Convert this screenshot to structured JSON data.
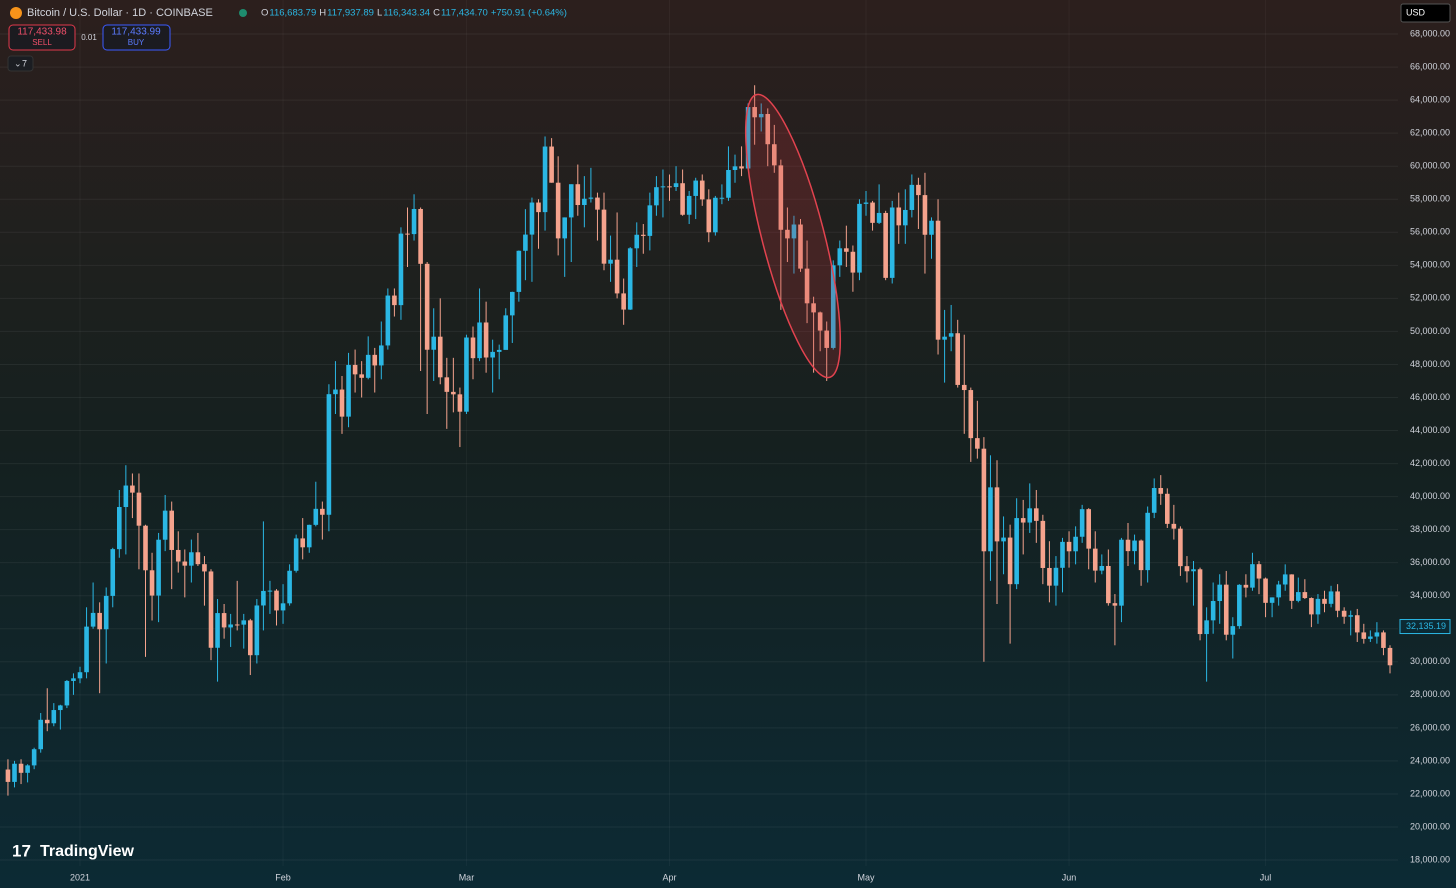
{
  "header": {
    "symbol": "Bitcoin / U.S. Dollar · 1D · COINBASE",
    "ohlc": [
      {
        "key": "O",
        "text": "116,683.79"
      },
      {
        "key": "H",
        "text": "117,937.89"
      },
      {
        "key": "L",
        "text": "116,343.34"
      },
      {
        "key": "C",
        "text": "117,434.70"
      }
    ],
    "change": "+750.91 (+0.64%)",
    "sell_price": "117,433.98",
    "sell": "SELL",
    "spread": "0.01",
    "buy_price": "117,433.99",
    "buy": "BUY",
    "indicators": "7",
    "currency": "USD",
    "logo": "TradingView"
  },
  "chart_data": {
    "type": "candlestick",
    "up_color": "#2bb7e4",
    "down_color": "#f5a38d",
    "grid": true,
    "categories": [
      null,
      null,
      null,
      null,
      null,
      null,
      null,
      null,
      null,
      null,
      null,
      "2021",
      null,
      null,
      null,
      null,
      null,
      null,
      null,
      null,
      null,
      null,
      null,
      null,
      null,
      null,
      null,
      null,
      null,
      null,
      null,
      null,
      null,
      null,
      null,
      null,
      null,
      null,
      null,
      null,
      null,
      null,
      "Feb",
      null,
      null,
      null,
      null,
      null,
      null,
      null,
      null,
      null,
      null,
      null,
      null,
      null,
      null,
      null,
      null,
      null,
      null,
      null,
      null,
      null,
      null,
      null,
      null,
      null,
      null,
      null,
      "Mar",
      null,
      null,
      null,
      null,
      null,
      null,
      null,
      null,
      null,
      null,
      null,
      null,
      null,
      null,
      null,
      null,
      null,
      null,
      null,
      null,
      null,
      null,
      null,
      null,
      null,
      null,
      null,
      null,
      null,
      null,
      "Apr",
      null,
      null,
      null,
      null,
      null,
      null,
      null,
      null,
      null,
      null,
      null,
      null,
      null,
      null,
      null,
      null,
      null,
      null,
      null,
      null,
      null,
      null,
      null,
      null,
      null,
      null,
      null,
      null,
      null,
      "May",
      null,
      null,
      null,
      null,
      null,
      null,
      null,
      null,
      null,
      null,
      null,
      null,
      null,
      null,
      null,
      null,
      null,
      null,
      null,
      null,
      null,
      null,
      null,
      null,
      null,
      null,
      null,
      null,
      null,
      null,
      "Jun",
      null,
      null,
      null,
      null,
      null,
      null,
      null,
      null,
      null,
      null,
      null,
      null,
      null,
      null,
      null,
      null,
      null,
      null,
      null,
      null,
      null,
      null,
      null,
      null,
      null,
      null,
      null,
      null,
      null,
      "Jul",
      null,
      null,
      null,
      null,
      null,
      null,
      null,
      null,
      null,
      null,
      null,
      null,
      null,
      null,
      null,
      null,
      null,
      null,
      null
    ],
    "open": [
      23480,
      22730,
      23830,
      23280,
      23730,
      24710,
      26490,
      26280,
      27080,
      27360,
      28840,
      29000,
      29370,
      32130,
      32960,
      31970,
      33990,
      36820,
      39370,
      40670,
      40240,
      38240,
      35540,
      34010,
      37390,
      39150,
      36770,
      36070,
      35820,
      36630,
      35910,
      35470,
      30850,
      32950,
      32080,
      32260,
      32250,
      32510,
      30400,
      33410,
      34290,
      34310,
      33110,
      33540,
      35510,
      37470,
      36930,
      38290,
      39260,
      38900,
      46200,
      46480,
      44840,
      47970,
      47400,
      47190,
      48580,
      47940,
      49150,
      52170,
      51590,
      55920,
      55890,
      57410,
      54090,
      48890,
      49680,
      47220,
      46340,
      46190,
      45140,
      49630,
      48380,
      50540,
      48420,
      48760,
      48880,
      50970,
      52390,
      54880,
      55860,
      57800,
      57220,
      61190,
      59000,
      55630,
      56900,
      58910,
      57650,
      58030,
      58100,
      57370,
      54100,
      54340,
      52300,
      51320,
      55030,
      55850,
      55780,
      57630,
      58730,
      58780,
      58740,
      58970,
      57060,
      58200,
      59130,
      57990,
      56000,
      58090,
      58090,
      59770,
      59990,
      59860,
      63580,
      62960,
      63160,
      61330,
      60050,
      56150,
      55630,
      56470,
      53800,
      51700,
      51150,
      50050,
      49000,
      54000,
      55030,
      54820,
      53560,
      57720,
      57800,
      56570,
      57170,
      53240,
      57500,
      56420,
      57350,
      58870,
      58250,
      55850,
      56700,
      49500,
      49680,
      49890,
      46760,
      46450,
      43540,
      42900,
      36690,
      40560,
      37290,
      37520,
      34700,
      38700,
      38430,
      39290,
      38530,
      35680,
      34610,
      35690,
      37260,
      36690,
      37570,
      39240,
      36850,
      35520,
      35800,
      33550,
      33400,
      37390,
      36700,
      37340,
      35550,
      39020,
      40520,
      40170,
      38350,
      38060,
      35790,
      35480,
      35600,
      31680,
      32510,
      33680,
      34670,
      31640,
      32160,
      34660,
      34490,
      35910,
      35040,
      33570,
      33900,
      34680,
      35290,
      33690,
      34220,
      33860,
      32870,
      33810,
      33510,
      34260,
      33090,
      32730,
      32820,
      31780,
      31390,
      31530,
      31780,
      30840
    ],
    "high": [
      24100,
      24000,
      24100,
      23800,
      24800,
      26900,
      28400,
      27500,
      27400,
      28900,
      29300,
      29700,
      33300,
      34800,
      33600,
      34500,
      36900,
      40400,
      41900,
      41400,
      41400,
      38300,
      36600,
      37800,
      40100,
      39700,
      37900,
      36800,
      37400,
      37800,
      36400,
      35600,
      33800,
      33500,
      32900,
      34900,
      32900,
      32600,
      33800,
      38500,
      34900,
      34400,
      34700,
      35900,
      37700,
      38700,
      38300,
      40900,
      39700,
      46800,
      48200,
      47300,
      48700,
      48900,
      48200,
      49700,
      49000,
      50600,
      52600,
      52600,
      56300,
      57500,
      58300,
      57500,
      54200,
      51400,
      52000,
      48400,
      48400,
      46600,
      49800,
      50300,
      52600,
      51800,
      49500,
      49200,
      51400,
      52400,
      54900,
      57400,
      58100,
      58000,
      61800,
      61700,
      60600,
      56900,
      58900,
      60100,
      59400,
      59900,
      58400,
      58400,
      55800,
      57200,
      53200,
      55100,
      56600,
      56500,
      58400,
      59400,
      59800,
      59500,
      60000,
      59800,
      58500,
      59300,
      59500,
      58600,
      58200,
      58900,
      61200,
      60700,
      61200,
      63800,
      64900,
      63800,
      63500,
      62500,
      60400,
      57500,
      57000,
      56800,
      55500,
      52100,
      51200,
      50600,
      54300,
      55500,
      56400,
      55200,
      58000,
      58500,
      57900,
      58900,
      57300,
      57900,
      58400,
      58600,
      59500,
      59300,
      59600,
      56900,
      58000,
      51300,
      51600,
      50700,
      49800,
      46600,
      45800,
      43600,
      42500,
      42200,
      38800,
      38300,
      39900,
      39800,
      40800,
      40400,
      38900,
      37300,
      36400,
      37500,
      37900,
      38200,
      39500,
      39300,
      37900,
      36500,
      36800,
      34100,
      37500,
      38400,
      37700,
      37400,
      39400,
      41100,
      41300,
      40500,
      39500,
      38200,
      36400,
      36100,
      35700,
      33300,
      34800,
      35300,
      35500,
      32700,
      34700,
      35300,
      36600,
      36100,
      35100,
      33900,
      34900,
      35900,
      35300,
      35100,
      35000,
      33900,
      34100,
      34300,
      34600,
      34700,
      33300,
      33100,
      33200,
      32300,
      31900,
      32400,
      31900,
      31000
    ],
    "low": [
      21900,
      22400,
      22600,
      22700,
      23500,
      24500,
      25800,
      26100,
      25900,
      27200,
      28000,
      28700,
      29000,
      32000,
      28100,
      29900,
      33300,
      36300,
      36500,
      38700,
      35600,
      30300,
      32500,
      32400,
      36700,
      34400,
      35400,
      33900,
      34800,
      35800,
      33400,
      30100,
      28800,
      31400,
      30900,
      31900,
      30800,
      29200,
      29900,
      31900,
      32900,
      32200,
      32300,
      33400,
      35400,
      36200,
      36600,
      38200,
      37400,
      37900,
      45000,
      43800,
      44200,
      46300,
      46000,
      47100,
      46300,
      47100,
      48900,
      50900,
      50700,
      53900,
      55500,
      47600,
      45000,
      47000,
      46800,
      44100,
      45100,
      43000,
      45000,
      47100,
      48200,
      47500,
      46300,
      47100,
      48900,
      49300,
      51800,
      53100,
      53000,
      55000,
      56100,
      59000,
      54600,
      53300,
      54200,
      57000,
      56300,
      57800,
      55500,
      53700,
      53000,
      52000,
      50400,
      51300,
      53900,
      54700,
      54900,
      57000,
      56900,
      57900,
      58500,
      57000,
      56500,
      56800,
      57600,
      55400,
      55800,
      57700,
      57900,
      59000,
      59400,
      59800,
      61300,
      62100,
      60000,
      59600,
      51300,
      54200,
      53500,
      53600,
      50500,
      47500,
      48800,
      47000,
      48900,
      53300,
      53900,
      52400,
      53100,
      57000,
      56100,
      56500,
      53100,
      52900,
      55300,
      55300,
      56900,
      56200,
      53500,
      54400,
      48600,
      46900,
      48800,
      46600,
      43800,
      42100,
      42300,
      30000,
      34900,
      33500,
      35300,
      31100,
      34400,
      36500,
      37800,
      37200,
      34700,
      33600,
      33400,
      34200,
      35700,
      35900,
      37200,
      35600,
      34800,
      35300,
      33400,
      31000,
      32400,
      35800,
      35900,
      34600,
      34800,
      38700,
      39500,
      38100,
      37400,
      35200,
      34800,
      33400,
      31300,
      28800,
      31700,
      32300,
      31300,
      30200,
      32000,
      33900,
      34300,
      34100,
      32700,
      32700,
      33400,
      34300,
      33200,
      33600,
      33800,
      32100,
      32300,
      33000,
      33300,
      32700,
      32300,
      31600,
      31200,
      31100,
      31200,
      31100,
      30400,
      29300
    ],
    "close": [
      22730,
      23830,
      23280,
      23730,
      24710,
      26490,
      26280,
      27080,
      27360,
      28840,
      29000,
      29370,
      32130,
      32960,
      31970,
      33990,
      36820,
      39370,
      40670,
      40240,
      38240,
      35540,
      34010,
      37390,
      39150,
      36770,
      36070,
      35820,
      36630,
      35910,
      35470,
      30850,
      32950,
      32080,
      32260,
      32250,
      32510,
      30400,
      33410,
      34290,
      34310,
      33110,
      33540,
      35510,
      37470,
      36930,
      38290,
      39260,
      38900,
      46200,
      46480,
      44840,
      47970,
      47400,
      47190,
      48580,
      47940,
      49150,
      52170,
      51590,
      55920,
      55890,
      57410,
      54090,
      48890,
      49680,
      47220,
      46340,
      46190,
      45140,
      49630,
      48380,
      50540,
      48420,
      48760,
      48880,
      50970,
      52390,
      54880,
      55860,
      57800,
      57220,
      61190,
      59000,
      55630,
      56900,
      58910,
      57650,
      58030,
      58100,
      57370,
      54100,
      54340,
      52300,
      51320,
      55030,
      55850,
      55780,
      57630,
      58730,
      58780,
      58740,
      58970,
      57060,
      58200,
      59130,
      57990,
      56000,
      58090,
      58090,
      59770,
      59990,
      59860,
      63580,
      62960,
      63160,
      61330,
      60050,
      56150,
      55630,
      56470,
      53800,
      51700,
      51150,
      50050,
      49000,
      54000,
      55030,
      54820,
      53560,
      57720,
      57800,
      56570,
      57170,
      53240,
      57500,
      56420,
      57350,
      58870,
      58250,
      55850,
      56700,
      49500,
      49680,
      49890,
      46760,
      46450,
      43540,
      42900,
      36690,
      40560,
      37290,
      37520,
      34700,
      38700,
      38430,
      39290,
      38530,
      35680,
      34610,
      35690,
      37260,
      36690,
      37570,
      39240,
      36850,
      35520,
      35800,
      33550,
      33400,
      37390,
      36700,
      37340,
      35550,
      39020,
      40520,
      40170,
      38350,
      38060,
      35790,
      35480,
      35600,
      31680,
      32510,
      33680,
      34670,
      31640,
      32160,
      34660,
      34490,
      35910,
      35040,
      33570,
      33900,
      34680,
      35290,
      33690,
      34220,
      33860,
      32870,
      33810,
      33510,
      34260,
      33090,
      32730,
      32820,
      31780,
      31390,
      31530,
      31780,
      30840,
      29790
    ],
    "ylim": [
      17640,
      70060
    ],
    "yticks": [
      {
        "value": 18000,
        "label": "18,000.00"
      },
      {
        "value": 20000,
        "label": "20,000.00"
      },
      {
        "value": 22000,
        "label": "22,000.00"
      },
      {
        "value": 24000,
        "label": "24,000.00"
      },
      {
        "value": 26000,
        "label": "26,000.00"
      },
      {
        "value": 28000,
        "label": "28,000.00"
      },
      {
        "value": 30000,
        "label": "30,000.00"
      },
      {
        "value": 32000,
        "label": "32,000.00"
      },
      {
        "value": 34000,
        "label": "34,000.00"
      },
      {
        "value": 36000,
        "label": "36,000.00"
      },
      {
        "value": 38000,
        "label": "38,000.00"
      },
      {
        "value": 40000,
        "label": "40,000.00"
      },
      {
        "value": 42000,
        "label": "42,000.00"
      },
      {
        "value": 44000,
        "label": "44,000.00"
      },
      {
        "value": 46000,
        "label": "46,000.00"
      },
      {
        "value": 48000,
        "label": "48,000.00"
      },
      {
        "value": 50000,
        "label": "50,000.00"
      },
      {
        "value": 52000,
        "label": "52,000.00"
      },
      {
        "value": 54000,
        "label": "54,000.00"
      },
      {
        "value": 56000,
        "label": "56,000.00"
      },
      {
        "value": 58000,
        "label": "58,000.00"
      },
      {
        "value": 60000,
        "label": "60,000.00"
      },
      {
        "value": 62000,
        "label": "62,000.00"
      },
      {
        "value": 64000,
        "label": "64,000.00"
      },
      {
        "value": 66000,
        "label": "66,000.00"
      },
      {
        "value": 68000,
        "label": "68,000.00"
      }
    ],
    "price_marker": {
      "value": 32135.19,
      "label": "32,135.19"
    }
  }
}
